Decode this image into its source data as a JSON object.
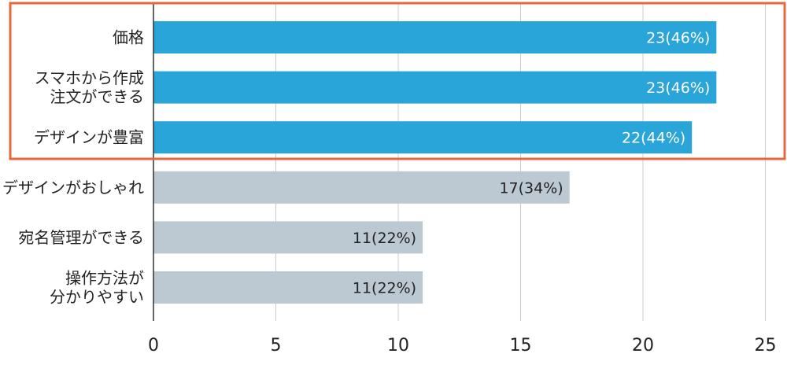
{
  "chart_data": {
    "type": "bar",
    "orientation": "horizontal",
    "title": "",
    "xlabel": "",
    "ylabel": "",
    "xlim": [
      0,
      25
    ],
    "xticks": [
      0,
      5,
      10,
      15,
      20,
      25
    ],
    "grid": "vertical",
    "categories": [
      [
        "価格"
      ],
      [
        "スマホから作成",
        "注文ができる"
      ],
      [
        "デザインが豊富"
      ],
      [
        "デザインがおしゃれ"
      ],
      [
        "宛名管理ができる"
      ],
      [
        "操作方法が",
        "分かりやすい"
      ]
    ],
    "values": [
      23,
      23,
      22,
      17,
      11,
      11
    ],
    "data_labels": [
      "23(46%)",
      "23(46%)",
      "22(44%)",
      "17(34%)",
      "11(22%)",
      "11(22%)"
    ],
    "highlighted": [
      true,
      true,
      true,
      false,
      false,
      false
    ],
    "colors": {
      "highlight_bar": "#2aa5da",
      "normal_bar": "#bcc9d3",
      "highlight_box": "#e8673a",
      "grid": "#cccccc",
      "axis": "#333333",
      "highlight_text": "#ffffff",
      "normal_text": "#222222"
    }
  }
}
